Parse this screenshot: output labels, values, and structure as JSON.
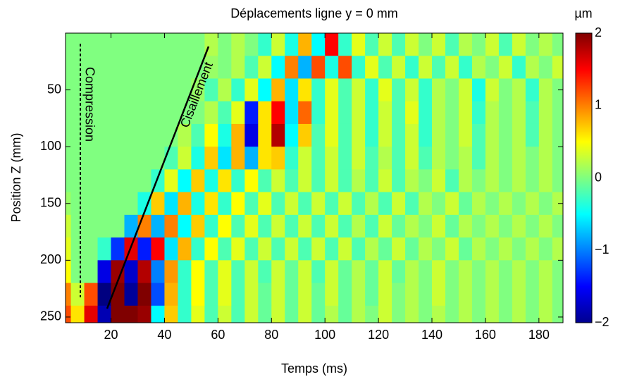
{
  "chart_data": {
    "type": "heatmap",
    "title": "Déplacements ligne y = 0 mm",
    "xlabel": "Temps (ms)",
    "ylabel": "Position Z (mm)",
    "colorbar_label": "µm",
    "annotations": [
      "Compression",
      "Cisaillement"
    ],
    "colormap": "jet",
    "x": [
      2.5,
      7.5,
      12.5,
      17.5,
      22.5,
      27.5,
      32.5,
      37.5,
      42.5,
      47.5,
      52.5,
      57.5,
      62.5,
      67.5,
      72.5,
      77.5,
      82.5,
      87.5,
      92.5,
      97.5,
      102.5,
      107.5,
      112.5,
      117.5,
      122.5,
      127.5,
      132.5,
      137.5,
      142.5,
      147.5,
      152.5,
      157.5,
      162.5,
      167.5,
      172.5,
      177.5,
      182.5,
      187.5,
      192.5,
      197.5
    ],
    "y": [
      10,
      30,
      50,
      70,
      90,
      110,
      130,
      150,
      170,
      190,
      210,
      230,
      250
    ],
    "z": [
      [
        0,
        0,
        0,
        0,
        0,
        0,
        0,
        0,
        0,
        0,
        0,
        0.2,
        0,
        0.2,
        0,
        -0.3,
        0.3,
        -0.4,
        0.8,
        -0.5,
        1.5,
        -0.3,
        0.4,
        -0.2,
        0.3,
        -0.2,
        0.3,
        0,
        0.3,
        -0.2,
        0.2,
        0,
        0.3,
        -0.2,
        0.3,
        0,
        0.2,
        0,
        0.2,
        0
      ],
      [
        0,
        0,
        0,
        0,
        0,
        0,
        0,
        0,
        0,
        0,
        0,
        0.1,
        0,
        0.2,
        -0.2,
        0.3,
        -0.5,
        1.0,
        -0.8,
        1.2,
        -0.4,
        1.2,
        -0.3,
        0.4,
        -0.2,
        0.3,
        -0.3,
        0.3,
        -0.2,
        0.3,
        -0.3,
        0.2,
        0,
        0.3,
        -0.3,
        0.2,
        0,
        0.3,
        0,
        0.2
      ],
      [
        0,
        0,
        0,
        0,
        0,
        0,
        0,
        0,
        0,
        0,
        0.1,
        -0.2,
        0.2,
        -0.3,
        0.4,
        -0.5,
        0.8,
        -0.6,
        0.6,
        -0.3,
        0.4,
        -0.2,
        0.3,
        -0.3,
        0.4,
        -0.2,
        0.3,
        -0.3,
        0.2,
        0,
        0.3,
        -0.4,
        0.3,
        0,
        0.2,
        -0.3,
        0.2,
        0,
        0.2,
        0
      ],
      [
        0,
        0,
        0,
        0,
        0,
        0,
        0,
        0,
        0,
        0,
        0,
        0.2,
        -0.2,
        0.4,
        -1.4,
        0.6,
        1.5,
        -0.6,
        1.1,
        -0.3,
        0.4,
        -0.2,
        0.3,
        -0.3,
        0.3,
        -0.2,
        0.4,
        -0.3,
        0.2,
        0,
        0.3,
        -0.3,
        0.2,
        0,
        0.2,
        -0.2,
        0.2,
        0,
        0.2,
        0
      ],
      [
        0,
        0,
        0,
        0,
        0,
        0,
        0,
        0,
        0,
        0.2,
        -0.2,
        0.5,
        -0.4,
        0.8,
        -1.6,
        0.6,
        1.8,
        -0.5,
        0.7,
        -0.2,
        0.4,
        -0.2,
        0.3,
        -0.3,
        0.3,
        -0.2,
        0.3,
        -0.3,
        0.2,
        0,
        0.3,
        -0.2,
        0.2,
        0,
        0.2,
        -0.2,
        0.2,
        0,
        0.1,
        0
      ],
      [
        0,
        0,
        0,
        0,
        0,
        0,
        0,
        0,
        -0.2,
        0.3,
        -0.4,
        0.7,
        -0.6,
        0.8,
        -0.8,
        0.6,
        0.7,
        -0.3,
        0.3,
        -0.2,
        0.3,
        -0.2,
        0.3,
        -0.2,
        0.2,
        -0.2,
        0.3,
        -0.2,
        0.2,
        0,
        0.2,
        -0.2,
        0.2,
        0,
        0.2,
        0,
        0.2,
        0,
        0.1,
        0
      ],
      [
        0,
        0,
        0,
        0,
        0,
        0,
        0,
        -0.3,
        0.4,
        -0.5,
        0.7,
        -0.4,
        0.6,
        -0.3,
        0.5,
        -0.2,
        0.3,
        -0.2,
        0.3,
        -0.2,
        0.3,
        -0.2,
        0.2,
        -0.2,
        0.3,
        -0.2,
        0.2,
        0,
        0.3,
        -0.2,
        0.2,
        0,
        0.2,
        0,
        0.2,
        0,
        0.2,
        0,
        0.1,
        0
      ],
      [
        0.1,
        0,
        0,
        0,
        0,
        0,
        -0.4,
        0.7,
        -0.6,
        0.8,
        -0.4,
        0.6,
        -0.3,
        0.5,
        -0.2,
        0.4,
        -0.2,
        0.3,
        -0.2,
        0.3,
        -0.2,
        0.3,
        -0.2,
        0.2,
        -0.2,
        0.3,
        -0.2,
        0.2,
        0,
        0.3,
        -0.1,
        0.2,
        0,
        0.2,
        0,
        0.2,
        0,
        0.2,
        0,
        0.1
      ],
      [
        0.3,
        0,
        0,
        0,
        0,
        -0.8,
        1.0,
        -0.8,
        1.0,
        -0.5,
        0.7,
        -0.3,
        0.5,
        -0.2,
        0.4,
        -0.2,
        0.3,
        -0.2,
        0.3,
        -0.2,
        0.3,
        -0.2,
        0.2,
        -0.2,
        0.3,
        -0.1,
        0.2,
        0,
        0.3,
        -0.1,
        0.2,
        0,
        0.2,
        0,
        0.2,
        0,
        0.2,
        0,
        0.1,
        0
      ],
      [
        0.4,
        0,
        0,
        -0.3,
        -1.3,
        1.6,
        -1.4,
        1.5,
        -0.6,
        0.8,
        -0.3,
        0.5,
        -0.2,
        0.4,
        -0.2,
        0.3,
        -0.2,
        0.3,
        -0.2,
        0.3,
        -0.2,
        0.3,
        -0.2,
        0.2,
        -0.1,
        0.3,
        -0.1,
        0.2,
        0,
        0.3,
        -0.1,
        0.2,
        0,
        0.2,
        0,
        0.2,
        0,
        0.2,
        0,
        0.1
      ],
      [
        0.5,
        0,
        0,
        -1.6,
        1.9,
        -1.7,
        1.8,
        -1.0,
        0.9,
        -0.3,
        0.5,
        -0.2,
        0.4,
        -0.2,
        0.3,
        -0.2,
        0.3,
        -0.1,
        0.3,
        -0.2,
        0.3,
        -0.1,
        0.2,
        -0.1,
        0.3,
        -0.1,
        0.2,
        0,
        0.3,
        0,
        0.2,
        0,
        0.2,
        0,
        0.2,
        0,
        0.2,
        0,
        0.1,
        0
      ],
      [
        1.0,
        0.3,
        1.2,
        -2.0,
        2.0,
        -1.9,
        2.0,
        -1.2,
        0.8,
        -0.3,
        0.5,
        -0.2,
        0.4,
        -0.2,
        0.3,
        -0.1,
        0.3,
        -0.1,
        0.3,
        -0.1,
        0.3,
        -0.1,
        0.2,
        -0.1,
        0.3,
        0,
        0.2,
        0,
        0.3,
        0,
        0.2,
        0,
        0.2,
        0,
        0.2,
        0,
        0.2,
        0,
        0.1,
        0
      ],
      [
        1.2,
        0.6,
        1.6,
        -1.8,
        2.0,
        2.0,
        1.9,
        -0.5,
        0.7,
        -0.3,
        0.4,
        -0.2,
        0.3,
        -0.2,
        0.3,
        -0.1,
        0.3,
        -0.1,
        0.3,
        -0.1,
        0.2,
        -0.1,
        0.2,
        0,
        0.3,
        0,
        0.2,
        0,
        0.2,
        0,
        0.2,
        0,
        0.2,
        0,
        0.2,
        0,
        0.2,
        0,
        0.1,
        0
      ]
    ],
    "xlim": [
      3,
      189
    ],
    "xticks": [
      20,
      40,
      60,
      80,
      100,
      120,
      140,
      160,
      180
    ],
    "ylim": [
      0,
      255
    ],
    "y_reversed": true,
    "yticks": [
      50,
      100,
      150,
      200,
      250
    ],
    "zlim": [
      -2,
      2
    ],
    "zticks": [
      {
        "value": -2,
        "label": "−2"
      },
      {
        "value": -1,
        "label": "−1"
      },
      0,
      1,
      2
    ]
  }
}
